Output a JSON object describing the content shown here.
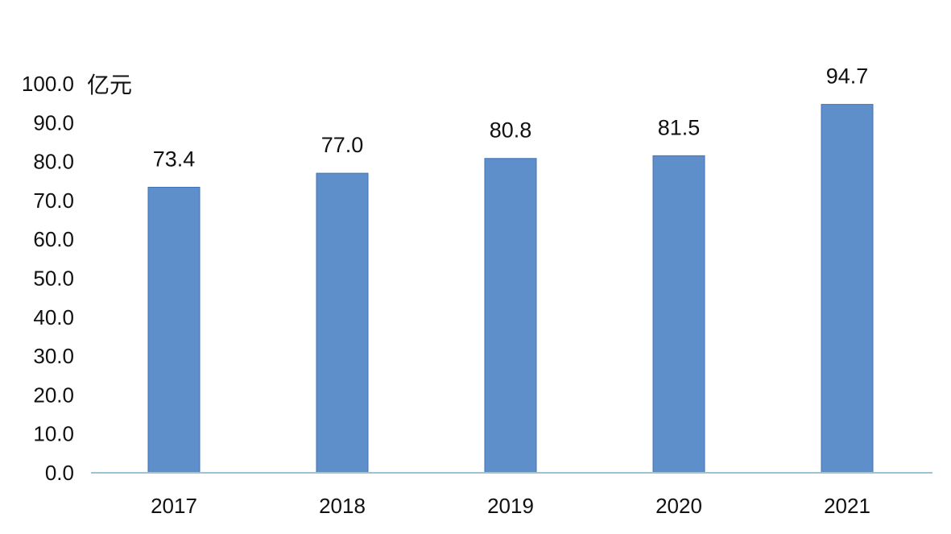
{
  "chart_data": {
    "type": "bar",
    "categories": [
      "2017",
      "2018",
      "2019",
      "2020",
      "2021"
    ],
    "values": [
      73.4,
      77.0,
      80.8,
      81.5,
      94.7
    ],
    "data_labels": [
      "73.4",
      "77.0",
      "80.8",
      "81.5",
      "94.7"
    ],
    "y_ticks": [
      "0.0",
      "10.0",
      "20.0",
      "30.0",
      "40.0",
      "50.0",
      "60.0",
      "70.0",
      "80.0",
      "90.0",
      "100.0"
    ],
    "ylabel": "亿元",
    "ylim": [
      0,
      100
    ],
    "grid": false,
    "legend": "none",
    "colors": {
      "bar_fill": "#5f8fcb",
      "bar_stroke": "#3f73b6",
      "axis_line": "#9cc3d5",
      "text": "#111111"
    }
  }
}
